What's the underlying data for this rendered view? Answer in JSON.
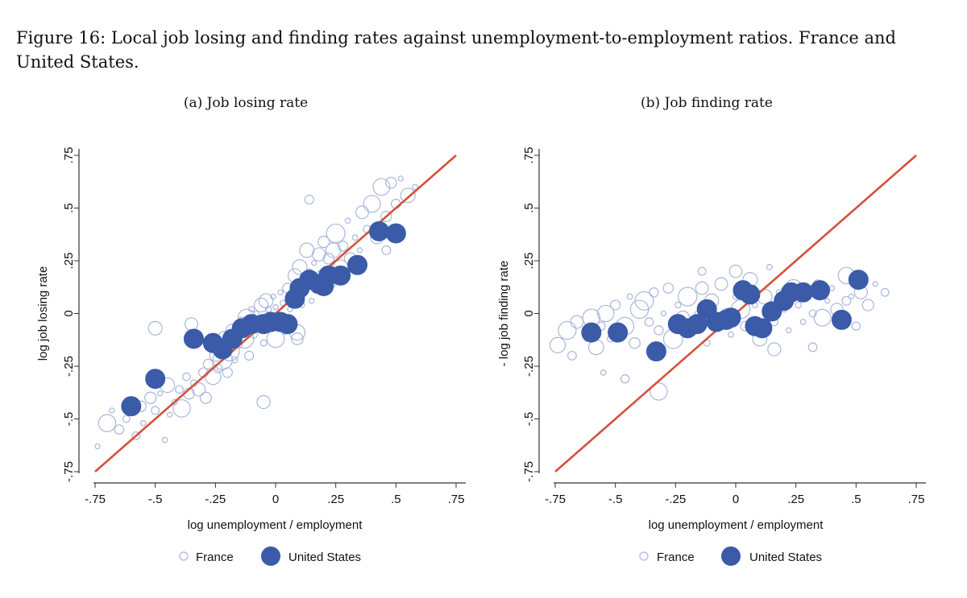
{
  "figure": {
    "caption": "Figure 16: Local job losing and finding rates against unemployment-to-employment ratios. France and United States."
  },
  "colors": {
    "france": "#a9b7dc",
    "us": "#3b5ba8",
    "fit_line": "#d6503b",
    "axis": "#333333"
  },
  "chart_data": [
    {
      "type": "scatter",
      "panel": "a",
      "title": "(a) Job losing rate",
      "xlabel": "log unemployment / employment",
      "ylabel": "log job losing rate",
      "xlim": [
        -0.75,
        0.75
      ],
      "ylim": [
        -0.75,
        0.75
      ],
      "xticks": [
        -0.75,
        -0.5,
        -0.25,
        0,
        0.25,
        0.5,
        0.75
      ],
      "xtick_labels": [
        "-.75",
        "-.5",
        "-.25",
        "0",
        ".25",
        ".5",
        ".75"
      ],
      "yticks": [
        -0.75,
        -0.5,
        -0.25,
        0,
        0.25,
        0.5,
        0.75
      ],
      "ytick_labels": [
        "-.75",
        "-.5",
        "-.25",
        "0",
        ".25",
        ".5",
        ".75"
      ],
      "reference_line": {
        "from": [
          -0.75,
          -0.75
        ],
        "to": [
          0.75,
          0.75
        ]
      },
      "legend": [
        "France",
        "United States"
      ],
      "series": [
        {
          "name": "United States",
          "marker": "filled-circle",
          "points": [
            [
              -0.6,
              -0.44
            ],
            [
              -0.5,
              -0.31
            ],
            [
              -0.34,
              -0.12
            ],
            [
              -0.26,
              -0.14
            ],
            [
              -0.22,
              -0.17
            ],
            [
              -0.18,
              -0.12
            ],
            [
              -0.14,
              -0.07
            ],
            [
              -0.1,
              -0.05
            ],
            [
              -0.05,
              -0.05
            ],
            [
              -0.02,
              -0.04
            ],
            [
              0.02,
              -0.04
            ],
            [
              0.05,
              -0.05
            ],
            [
              0.08,
              0.07
            ],
            [
              0.1,
              0.12
            ],
            [
              0.14,
              0.16
            ],
            [
              0.18,
              0.14
            ],
            [
              0.2,
              0.13
            ],
            [
              0.22,
              0.18
            ],
            [
              0.27,
              0.18
            ],
            [
              0.34,
              0.23
            ],
            [
              0.43,
              0.39
            ],
            [
              0.5,
              0.38
            ]
          ]
        },
        {
          "name": "France",
          "marker": "hollow-circle",
          "points": [
            [
              -0.74,
              -0.63
            ],
            [
              -0.7,
              -0.52
            ],
            [
              -0.68,
              -0.46
            ],
            [
              -0.65,
              -0.55
            ],
            [
              -0.62,
              -0.5
            ],
            [
              -0.58,
              -0.58
            ],
            [
              -0.56,
              -0.44
            ],
            [
              -0.55,
              -0.52
            ],
            [
              -0.52,
              -0.4
            ],
            [
              -0.5,
              -0.46
            ],
            [
              -0.48,
              -0.38
            ],
            [
              -0.46,
              -0.6
            ],
            [
              -0.45,
              -0.34
            ],
            [
              -0.44,
              -0.48
            ],
            [
              -0.42,
              -0.42
            ],
            [
              -0.4,
              -0.36
            ],
            [
              -0.39,
              -0.45
            ],
            [
              -0.37,
              -0.3
            ],
            [
              -0.36,
              -0.38
            ],
            [
              -0.34,
              -0.33
            ],
            [
              -0.32,
              -0.36
            ],
            [
              -0.3,
              -0.28
            ],
            [
              -0.29,
              -0.4
            ],
            [
              -0.28,
              -0.24
            ],
            [
              -0.26,
              -0.3
            ],
            [
              -0.25,
              -0.2
            ],
            [
              -0.24,
              -0.26
            ],
            [
              -0.22,
              -0.22
            ],
            [
              -0.21,
              -0.12
            ],
            [
              -0.2,
              -0.28
            ],
            [
              -0.19,
              -0.18
            ],
            [
              -0.18,
              -0.08
            ],
            [
              -0.17,
              -0.22
            ],
            [
              -0.16,
              -0.1
            ],
            [
              -0.15,
              -0.15
            ],
            [
              -0.14,
              -0.04
            ],
            [
              -0.13,
              -0.12
            ],
            [
              -0.12,
              -0.02
            ],
            [
              -0.11,
              -0.2
            ],
            [
              -0.1,
              0.02
            ],
            [
              -0.09,
              -0.1
            ],
            [
              -0.08,
              0.0
            ],
            [
              -0.07,
              -0.06
            ],
            [
              -0.06,
              0.04
            ],
            [
              -0.05,
              -0.14
            ],
            [
              -0.04,
              0.06
            ],
            [
              -0.03,
              0.02
            ],
            [
              -0.02,
              -0.02
            ],
            [
              -0.01,
              0.08
            ],
            [
              0.0,
              0.03
            ],
            [
              0.01,
              -0.01
            ],
            [
              0.02,
              0.1
            ],
            [
              0.03,
              0.05
            ],
            [
              0.04,
              -0.08
            ],
            [
              0.05,
              0.12
            ],
            [
              0.06,
              0.02
            ],
            [
              0.07,
              0.08
            ],
            [
              0.08,
              0.18
            ],
            [
              0.09,
              -0.12
            ],
            [
              0.1,
              0.22
            ],
            [
              0.11,
              0.04
            ],
            [
              0.12,
              0.1
            ],
            [
              0.13,
              0.3
            ],
            [
              0.14,
              0.2
            ],
            [
              0.15,
              0.06
            ],
            [
              0.16,
              0.24
            ],
            [
              0.17,
              0.12
            ],
            [
              0.18,
              0.28
            ],
            [
              0.19,
              0.18
            ],
            [
              0.2,
              0.34
            ],
            [
              0.22,
              0.26
            ],
            [
              0.23,
              0.14
            ],
            [
              0.24,
              0.3
            ],
            [
              0.25,
              0.38
            ],
            [
              0.27,
              0.22
            ],
            [
              0.28,
              0.32
            ],
            [
              0.3,
              0.44
            ],
            [
              0.31,
              0.26
            ],
            [
              0.33,
              0.36
            ],
            [
              0.35,
              0.3
            ],
            [
              0.36,
              0.48
            ],
            [
              0.38,
              0.4
            ],
            [
              0.4,
              0.52
            ],
            [
              0.42,
              0.36
            ],
            [
              0.44,
              0.6
            ],
            [
              0.46,
              0.46
            ],
            [
              0.46,
              0.3
            ],
            [
              0.48,
              0.62
            ],
            [
              0.5,
              0.52
            ],
            [
              0.52,
              0.64
            ],
            [
              0.55,
              0.56
            ],
            [
              0.58,
              0.6
            ],
            [
              0.14,
              0.54
            ],
            [
              -0.35,
              -0.05
            ],
            [
              -0.5,
              -0.07
            ],
            [
              -0.05,
              -0.42
            ],
            [
              0.0,
              -0.12
            ],
            [
              0.09,
              -0.09
            ]
          ]
        }
      ]
    },
    {
      "type": "scatter",
      "panel": "b",
      "title": "(b) Job finding rate",
      "xlabel": "log unemployment / employment",
      "ylabel": "- log job finding rate",
      "xlim": [
        -0.75,
        0.75
      ],
      "ylim": [
        -0.75,
        0.75
      ],
      "xticks": [
        -0.75,
        -0.5,
        -0.25,
        0,
        0.25,
        0.5,
        0.75
      ],
      "xtick_labels": [
        "-.75",
        "-.5",
        "-.25",
        "0",
        ".25",
        ".5",
        ".75"
      ],
      "yticks": [
        -0.75,
        -0.5,
        -0.25,
        0,
        0.25,
        0.5,
        0.75
      ],
      "ytick_labels": [
        "-.75",
        "-.5",
        "-.25",
        "0",
        ".25",
        ".5",
        ".75"
      ],
      "reference_line": {
        "from": [
          -0.75,
          -0.75
        ],
        "to": [
          0.75,
          0.75
        ]
      },
      "legend": [
        "France",
        "United States"
      ],
      "series": [
        {
          "name": "United States",
          "marker": "filled-circle",
          "points": [
            [
              -0.6,
              -0.09
            ],
            [
              -0.49,
              -0.09
            ],
            [
              -0.33,
              -0.18
            ],
            [
              -0.24,
              -0.05
            ],
            [
              -0.2,
              -0.07
            ],
            [
              -0.16,
              -0.05
            ],
            [
              -0.12,
              0.02
            ],
            [
              -0.08,
              -0.04
            ],
            [
              -0.04,
              -0.03
            ],
            [
              -0.02,
              -0.02
            ],
            [
              0.03,
              0.11
            ],
            [
              0.06,
              0.09
            ],
            [
              0.08,
              -0.06
            ],
            [
              0.11,
              -0.07
            ],
            [
              0.15,
              0.01
            ],
            [
              0.2,
              0.06
            ],
            [
              0.23,
              0.1
            ],
            [
              0.28,
              0.1
            ],
            [
              0.35,
              0.11
            ],
            [
              0.44,
              -0.03
            ],
            [
              0.51,
              0.16
            ]
          ]
        },
        {
          "name": "France",
          "marker": "hollow-circle",
          "points": [
            [
              -0.74,
              -0.15
            ],
            [
              -0.7,
              -0.08
            ],
            [
              -0.68,
              -0.2
            ],
            [
              -0.66,
              -0.04
            ],
            [
              -0.62,
              -0.12
            ],
            [
              -0.6,
              -0.02
            ],
            [
              -0.58,
              -0.16
            ],
            [
              -0.56,
              -0.06
            ],
            [
              -0.54,
              0.0
            ],
            [
              -0.52,
              -0.12
            ],
            [
              -0.5,
              0.04
            ],
            [
              -0.48,
              -0.1
            ],
            [
              -0.46,
              -0.06
            ],
            [
              -0.44,
              0.08
            ],
            [
              -0.42,
              -0.14
            ],
            [
              -0.4,
              0.02
            ],
            [
              -0.38,
              0.06
            ],
            [
              -0.36,
              -0.04
            ],
            [
              -0.34,
              0.1
            ],
            [
              -0.32,
              -0.08
            ],
            [
              -0.3,
              0.0
            ],
            [
              -0.28,
              0.12
            ],
            [
              -0.26,
              -0.12
            ],
            [
              -0.24,
              0.04
            ],
            [
              -0.22,
              -0.02
            ],
            [
              -0.2,
              0.08
            ],
            [
              -0.18,
              -0.08
            ],
            [
              -0.16,
              0.0
            ],
            [
              -0.14,
              0.12
            ],
            [
              -0.12,
              -0.14
            ],
            [
              -0.1,
              0.06
            ],
            [
              -0.08,
              -0.04
            ],
            [
              -0.06,
              0.14
            ],
            [
              -0.04,
              0.0
            ],
            [
              -0.02,
              -0.1
            ],
            [
              0.0,
              0.08
            ],
            [
              0.02,
              0.02
            ],
            [
              0.04,
              -0.06
            ],
            [
              0.06,
              0.16
            ],
            [
              0.08,
              0.04
            ],
            [
              0.1,
              -0.12
            ],
            [
              0.12,
              0.08
            ],
            [
              0.14,
              0.22
            ],
            [
              0.16,
              -0.04
            ],
            [
              0.18,
              0.1
            ],
            [
              0.2,
              0.02
            ],
            [
              0.22,
              -0.08
            ],
            [
              0.24,
              0.12
            ],
            [
              0.26,
              0.04
            ],
            [
              0.28,
              -0.04
            ],
            [
              0.3,
              0.08
            ],
            [
              0.32,
              0.0
            ],
            [
              0.34,
              0.14
            ],
            [
              0.36,
              -0.02
            ],
            [
              0.38,
              0.06
            ],
            [
              0.4,
              0.12
            ],
            [
              0.42,
              0.02
            ],
            [
              0.46,
              0.06
            ],
            [
              0.46,
              0.18
            ],
            [
              0.48,
              0.08
            ],
            [
              0.5,
              -0.06
            ],
            [
              0.52,
              0.1
            ],
            [
              0.55,
              0.04
            ],
            [
              0.58,
              0.14
            ],
            [
              0.62,
              0.1
            ],
            [
              -0.32,
              -0.37
            ],
            [
              -0.46,
              -0.31
            ],
            [
              -0.55,
              -0.28
            ],
            [
              -0.14,
              0.2
            ],
            [
              0.0,
              0.2
            ],
            [
              0.16,
              -0.17
            ],
            [
              0.32,
              -0.16
            ]
          ]
        }
      ]
    }
  ]
}
